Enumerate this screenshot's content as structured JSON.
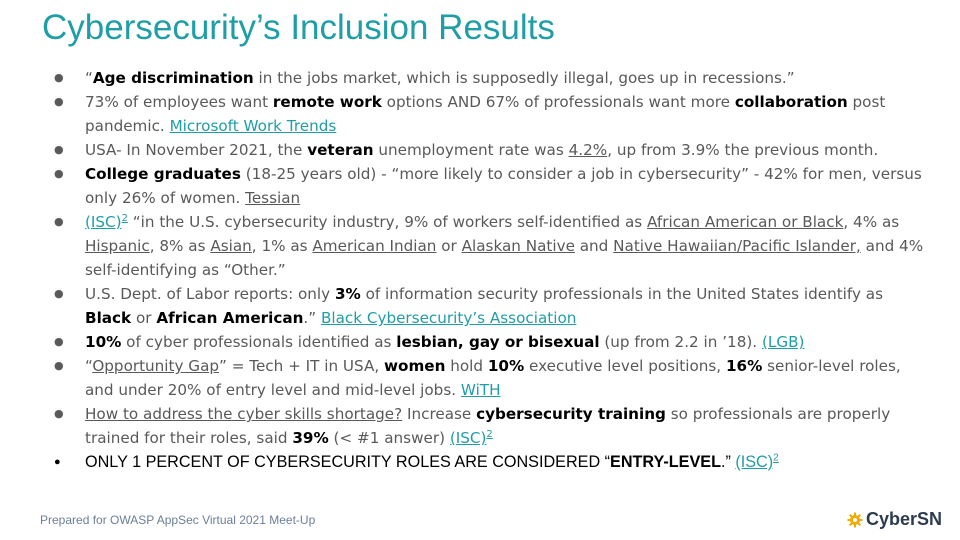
{
  "slide": {
    "title": "Cybersecurity’s Inclusion Results",
    "footer": "Prepared for OWASP AppSec Virtual 2021 Meet-Up",
    "logo_text": "CyberSN",
    "accent_color": "#1f9ea6"
  },
  "bullets": {
    "b1": {
      "t1": "“",
      "b_age": "Age discrimination",
      "t2": " in the jobs market, which is supposedly illegal, goes up in recessions.”"
    },
    "b2": {
      "t1": "73% of employees want ",
      "b_remote": "remote work",
      "t2": " options AND 67% of professionals want more ",
      "b_collab": "collaboration",
      "t3": " post pandemic. ",
      "link": "Microsoft Work Trends"
    },
    "b3": {
      "t1": "USA- In November 2021, the ",
      "b_veteran": "veteran",
      "t2": " unemployment rate was ",
      "u_rate": "4.2%",
      "t3": ", up from 3.9% the previous month."
    },
    "b4": {
      "b_college": "College graduates",
      "t1": " (18-25 years old) - “more likely to consider a job in cybersecurity” - 42% for men, versus only 26% of women. ",
      "u_tessian": "Tessian"
    },
    "b5": {
      "link_isc": "(ISC)",
      "sup": "2",
      "t1": " “in the U.S. cybersecurity industry, 9% of workers self-identified as ",
      "u_aa": "African American or Black",
      "t2": ", 4% as ",
      "u_hispanic": "Hispanic",
      "t3": ", 8% as ",
      "u_asian": "Asian",
      "t4": ", 1% as ",
      "u_ai": "American Indian",
      "t5": " or ",
      "u_an": "Alaskan Native",
      "t6": " and ",
      "u_nh": "Native Hawaiian/Pacific Islander,",
      "t7": " and 4% self-identifying as “Other.”"
    },
    "b6": {
      "t1": "U.S. Dept. of Labor reports: only ",
      "b_3": "3%",
      "t2": " of information security professionals in the United States identify as ",
      "b_black": "Black",
      "t3": " or ",
      "b_afam": "African American",
      "t4": ".” ",
      "link": "Black Cybersecurity’s Association"
    },
    "b7": {
      "b_10": "10%",
      "t1": " of cyber professionals identified as ",
      "b_lgb": "lesbian, gay or bisexual",
      "t2": " (up from 2.2 in ’18). ",
      "link": "(LGB)"
    },
    "b8": {
      "t1": "“",
      "u_gap": "Opportunity Gap",
      "t2": "” = Tech + IT in USA, ",
      "b_women": "women",
      "t3": " hold ",
      "b_10": "10%",
      "t4": " executive level positions, ",
      "b_16": "16%",
      "t5": " senior-level roles, and under 20%  of entry level and mid-level jobs. ",
      "link": "WiTH"
    },
    "b9": {
      "u_how": "How to address the cyber skills shortage?",
      "t1": " Increase ",
      "b_training": "cybersecurity training",
      "t2": " so professionals are properly trained for their roles, said ",
      "b_39": "39%",
      "t3": " (< #1 answer)  ",
      "link": "(ISC)",
      "sup": "2"
    },
    "b10": {
      "t1": "ONLY 1 PERCENT OF CYBERSECURITY ROLES ARE CONSIDERED “",
      "b_entry": "ENTRY-LEVEL",
      "t2": ".” ",
      "link": "(ISC)",
      "sup": "2"
    }
  }
}
